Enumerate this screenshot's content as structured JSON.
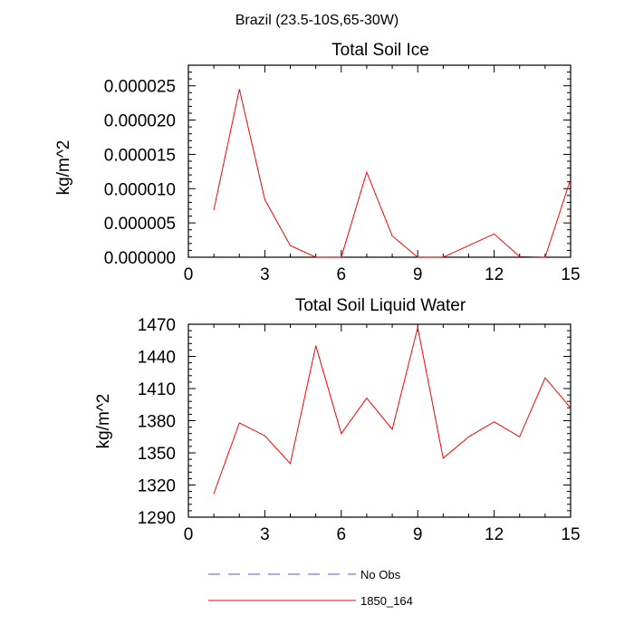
{
  "figure_title": "Brazil (23.5-10S,65-30W)",
  "colors": {
    "series": "#ff0000",
    "no_obs": "#5b5bb0",
    "axis": "#000000"
  },
  "legend": {
    "placement": "bottom",
    "entries": [
      {
        "label": "No Obs",
        "style": "dashed",
        "color": "#5b5bb0"
      },
      {
        "label": "1850_164",
        "style": "solid",
        "color": "#ff0000"
      }
    ]
  },
  "chart_data": [
    {
      "type": "line",
      "title": "Total Soil Ice",
      "xlabel": "",
      "ylabel": "kg/m^2",
      "xlim": [
        0,
        15
      ],
      "ylim": [
        0,
        2.8e-05
      ],
      "xticks": [
        "0",
        "3",
        "6",
        "9",
        "12",
        "15"
      ],
      "yticks": [
        "0.000000",
        "0.000005",
        "0.000010",
        "0.000015",
        "0.000020",
        "0.000025"
      ],
      "grid": false,
      "series": [
        {
          "name": "1850_164",
          "x": [
            1,
            2,
            3,
            4,
            5,
            6,
            7,
            8,
            9,
            10,
            11,
            12,
            13,
            14,
            15
          ],
          "values": [
            6.9e-06,
            2.45e-05,
            8.4e-06,
            1.7e-06,
            0.0,
            0.0,
            1.24e-05,
            3.1e-06,
            0.0,
            0.0,
            1.7e-06,
            3.4e-06,
            1e-07,
            0.0,
            1.14e-05
          ]
        }
      ]
    },
    {
      "type": "line",
      "title": "Total Soil Liquid Water",
      "xlabel": "",
      "ylabel": "kg/m^2",
      "xlim": [
        0,
        15
      ],
      "ylim": [
        1290,
        1470
      ],
      "xticks": [
        "0",
        "3",
        "6",
        "9",
        "12",
        "15"
      ],
      "yticks": [
        "1290",
        "1320",
        "1350",
        "1380",
        "1410",
        "1440",
        "1470"
      ],
      "grid": false,
      "series": [
        {
          "name": "1850_164",
          "x": [
            1,
            2,
            3,
            4,
            5,
            6,
            7,
            8,
            9,
            10,
            11,
            12,
            13,
            14,
            15
          ],
          "values": [
            1312,
            1378,
            1366,
            1340,
            1450,
            1368,
            1401,
            1372,
            1467,
            1345,
            1365,
            1379,
            1365,
            1420,
            1392
          ]
        }
      ]
    }
  ]
}
